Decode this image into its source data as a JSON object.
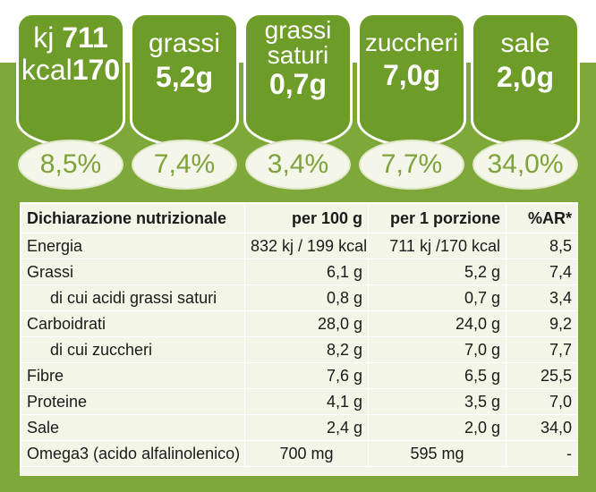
{
  "badges": [
    {
      "line1": "kj",
      "line1_value": "711",
      "line2": "kcal",
      "line2_value": "170",
      "percent": "8,5%"
    },
    {
      "line1": "grassi",
      "line2_value": "5,2g",
      "percent": "7,4%"
    },
    {
      "line1": "grassi",
      "line1b": "saturi",
      "line2_value": "0,7g",
      "percent": "3,4%"
    },
    {
      "line1": "zuccheri",
      "line2_value": "7,0g",
      "percent": "7,7%"
    },
    {
      "line1": "sale",
      "line2_value": "2,0g",
      "percent": "34,0%"
    }
  ],
  "table": {
    "headers": [
      "Dichiarazione nutrizionale",
      "per 100 g",
      "per 1 porzione",
      "%AR*"
    ],
    "rows": [
      {
        "label": "Energia",
        "per100": "832 kj  / 199 kcal",
        "porzione": "711 kj  /170 kcal",
        "ar": "8,5"
      },
      {
        "label": "Grassi",
        "per100": "6,1 g",
        "porzione": "5,2 g",
        "ar": "7,4"
      },
      {
        "label": "di cui acidi grassi saturi",
        "per100": "0,8 g",
        "porzione": "0,7 g",
        "ar": "3,4"
      },
      {
        "label": "Carboidrati",
        "per100": "28,0 g",
        "porzione": "24,0 g",
        "ar": "9,2"
      },
      {
        "label": "di cui zuccheri",
        "per100": "8,2 g",
        "porzione": "7,0 g",
        "ar": "7,7"
      },
      {
        "label": "Fibre",
        "per100": "7,6 g",
        "porzione": "6,5 g",
        "ar": "25,5"
      },
      {
        "label": "Proteine",
        "per100": "4,1 g",
        "porzione": "3,5 g",
        "ar": "7,0"
      },
      {
        "label": "Sale",
        "per100": "2,4 g",
        "porzione": "2,0 g",
        "ar": "34,0"
      },
      {
        "label": "Omega3 (acido alfalinolenico)",
        "per100": "700 mg",
        "porzione": "595 mg",
        "ar": "-"
      }
    ]
  },
  "colors": {
    "green": "#7fa83a",
    "badge": "#6e9c28",
    "percent_text": "#7ea23c",
    "table_bg": "#f3f6e6"
  }
}
